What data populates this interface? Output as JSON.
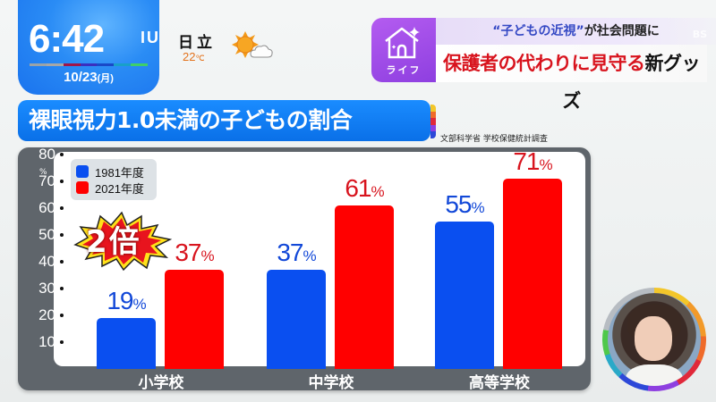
{
  "clock": {
    "time": "6:42",
    "suffix": "IU",
    "date": "10/23",
    "weekday": "(月)",
    "bar_colors": [
      "#9aa3a8",
      "#a7a7a7",
      "#a0154a",
      "#3a2fbf",
      "#1949c8",
      "#19a0c8",
      "#3fcf6a"
    ]
  },
  "weather": {
    "city": "日立",
    "temperature": "22",
    "unit": "℃",
    "icon": "sun-cloud-icon"
  },
  "topic": {
    "category": "ライフ",
    "category_icon": "house-sparkle-icon",
    "subtitle_quote": "“子どもの近視”",
    "subtitle_rest": "が社会問題に",
    "headline_red": "保護者の代わりに見守る",
    "headline_black": "新グッズ",
    "watermark": "BS"
  },
  "chart_title": "裸眼視力1.0未満の子どもの割合",
  "source": "文部科学省 学校保健統計調査",
  "title_stripe_colors": [
    "#f3c62a",
    "#ef6b2a",
    "#e0283a",
    "#8e3fe0",
    "#2d48d8"
  ],
  "colors": {
    "series_1981": "#0a4ff0",
    "series_2021": "#ff0000",
    "label_1981": "#1248d8",
    "label_2021": "#d8141e"
  },
  "annotation": "2倍",
  "chart_data": {
    "type": "bar",
    "title": "裸眼視力1.0未満の子どもの割合",
    "xlabel": "",
    "ylabel": "%",
    "ylim": [
      0,
      80
    ],
    "y_ticks": [
      10,
      20,
      30,
      40,
      50,
      60,
      70,
      80
    ],
    "grid": false,
    "legend_position": "top-left",
    "categories": [
      "小学校",
      "中学校",
      "高等学校"
    ],
    "series": [
      {
        "name": "1981年度",
        "values": [
          19,
          37,
          55
        ],
        "labels": [
          "19",
          "37",
          "55"
        ]
      },
      {
        "name": "2021年度",
        "values": [
          37,
          61,
          71
        ],
        "labels": [
          "37",
          "61",
          "71"
        ]
      }
    ],
    "value_suffix": "%",
    "annotations": [
      "2倍"
    ],
    "source": "文部科学省 学校保健統計調査"
  }
}
